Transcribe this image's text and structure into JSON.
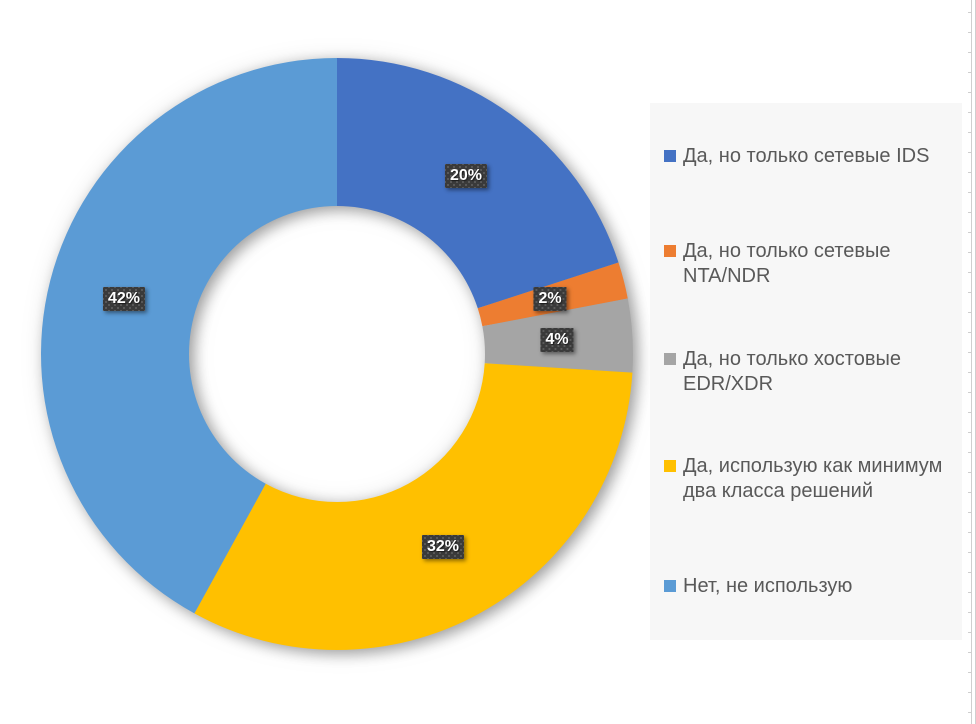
{
  "chart_data": {
    "type": "pie",
    "subtype": "donut",
    "title": "",
    "categories": [
      "Да, но только сетевые IDS",
      "Да, но только сетевые NTA/NDR",
      "Да, но только хостовые EDR/XDR",
      "Да, использую как минимум два класса решений",
      "Нет, не использую"
    ],
    "values": [
      20,
      2,
      4,
      32,
      42
    ],
    "labels": [
      "20%",
      "2%",
      "4%",
      "32%",
      "42%"
    ],
    "colors": [
      "#4472C4",
      "#ED7D31",
      "#A5A5A5",
      "#FFC000",
      "#5B9BD5"
    ],
    "start_angle_deg": 0,
    "direction": "clockwise",
    "hole_ratio": 0.5,
    "legend_position": "right",
    "data_label_style": {
      "background": "#3a3a3a",
      "text_color": "#ffffff",
      "pattern": "dotted"
    },
    "legend_background": "#f7f7f7",
    "legend_text_color": "#595959"
  }
}
